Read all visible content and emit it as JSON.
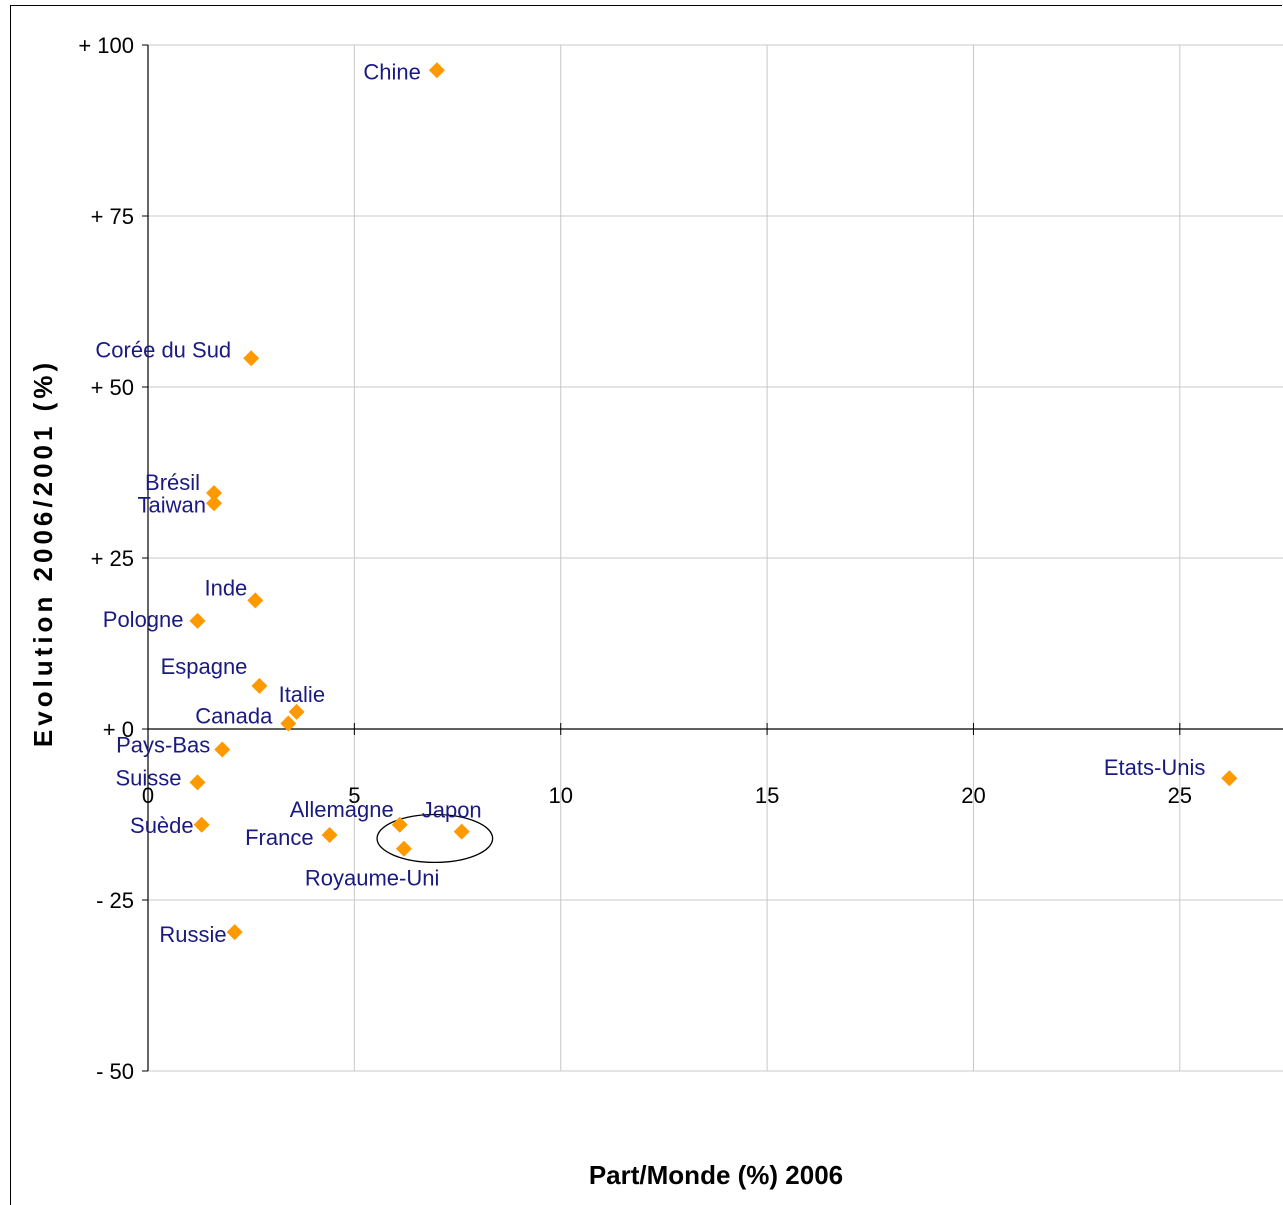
{
  "chart_data": {
    "type": "scatter",
    "xlabel": "Part/Monde (%) 2006",
    "ylabel": "Evolution 2006/2001 (%)",
    "xlim": [
      0,
      27.5
    ],
    "ylim": [
      -50,
      100
    ],
    "x_ticks": [
      {
        "value": 0,
        "label": "0"
      },
      {
        "value": 5,
        "label": "5"
      },
      {
        "value": 10,
        "label": "10"
      },
      {
        "value": 15,
        "label": "15"
      },
      {
        "value": 20,
        "label": "20"
      },
      {
        "value": 25,
        "label": "25"
      }
    ],
    "y_ticks": [
      {
        "value": 100,
        "label": "+ 100"
      },
      {
        "value": 75,
        "label": "+ 75"
      },
      {
        "value": 50,
        "label": "+ 50"
      },
      {
        "value": 25,
        "label": "+ 25"
      },
      {
        "value": 0,
        "label": "+ 0"
      },
      {
        "value": -25,
        "label": "- 25"
      },
      {
        "value": -50,
        "label": "- 50"
      }
    ],
    "grid": true,
    "marker_color": "#ff9900",
    "label_color": "#1a1a80",
    "points": [
      {
        "label": "Chine",
        "x": 7.0,
        "y": 96.3
      },
      {
        "label": "Corée du Sud",
        "x": 2.5,
        "y": 54.2
      },
      {
        "label": "Brésil",
        "x": 1.6,
        "y": 34.5
      },
      {
        "label": "Taiwan",
        "x": 1.6,
        "y": 33.0
      },
      {
        "label": "Inde",
        "x": 2.6,
        "y": 18.8
      },
      {
        "label": "Pologne",
        "x": 1.2,
        "y": 15.8
      },
      {
        "label": "Espagne",
        "x": 2.7,
        "y": 6.3
      },
      {
        "label": "Italie",
        "x": 3.6,
        "y": 2.5
      },
      {
        "label": "Canada",
        "x": 3.4,
        "y": 0.8
      },
      {
        "label": "Pays-Bas",
        "x": 1.8,
        "y": -3.0
      },
      {
        "label": "Suisse",
        "x": 1.2,
        "y": -7.8
      },
      {
        "label": "Etats-Unis",
        "x": 26.2,
        "y": -7.2
      },
      {
        "label": "Suède",
        "x": 1.3,
        "y": -14.0
      },
      {
        "label": "Allemagne",
        "x": 6.1,
        "y": -14.0
      },
      {
        "label": "Japon",
        "x": 7.6,
        "y": -15.0
      },
      {
        "label": "France",
        "x": 4.4,
        "y": -15.5
      },
      {
        "label": "Royaume-Uni",
        "x": 6.2,
        "y": -17.5
      },
      {
        "label": "Russie",
        "x": 2.1,
        "y": -29.7
      }
    ],
    "annotations": [
      {
        "type": "ellipse",
        "center_x": 6.95,
        "center_y": -16.0,
        "radius_x": 1.4,
        "radius_y": 3.5
      }
    ]
  }
}
